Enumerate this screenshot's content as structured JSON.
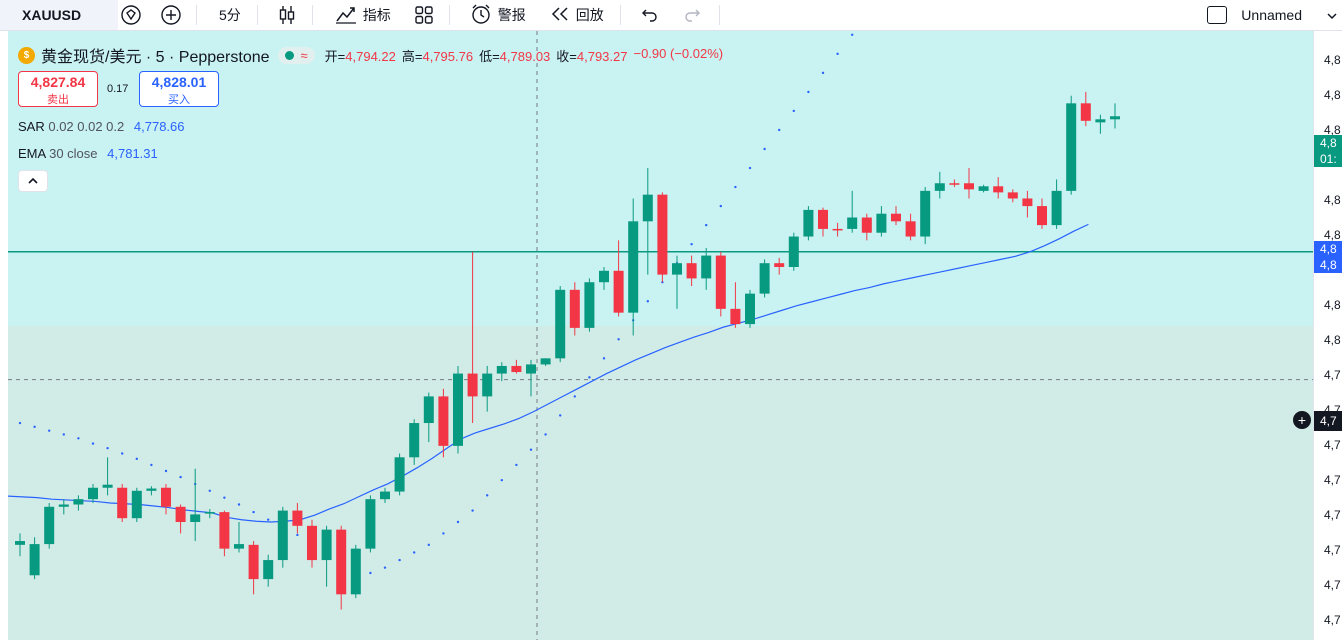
{
  "toolbar": {
    "symbol": "XAUUSD",
    "interval": "5分",
    "indicators_label": "指标",
    "alert_label": "警报",
    "replay_label": "回放",
    "layout_name": "Unnamed"
  },
  "legend": {
    "title": "黄金现货/美元 · 5 · Pepperstone",
    "open_label": "开=",
    "open": "4,794.22",
    "high_label": "高=",
    "high": "4,795.76",
    "low_label": "低=",
    "low": "4,789.03",
    "close_label": "收=",
    "close": "4,793.27",
    "change": "−0.90 (−0.02%)",
    "sell_price": "4,827.84",
    "sell_label": "卖出",
    "spread": "0.17",
    "buy_price": "4,828.01",
    "buy_label": "买入",
    "sar_name": "SAR",
    "sar_params": "0.02 0.02 0.2",
    "sar_value": "4,778.66",
    "ema_name": "EMA",
    "ema_params": "30 close",
    "ema_value": "4,781.31"
  },
  "price_axis": {
    "ticks": [
      "4,8",
      "4,8",
      "4,8",
      "4,8",
      "4,8",
      "4,8",
      "4,8",
      "4,7",
      "4,7",
      "4,7",
      "4,7",
      "4,7",
      "4,7",
      "4,7",
      "4,7"
    ],
    "last_price_tag_top": "4,8",
    "last_price_tag_bottom": "01:",
    "ema_tag_top": "4,8",
    "ema_tag_bottom": "4,8",
    "crosshair_tag": "4,7"
  },
  "colors": {
    "up": "#089981",
    "down": "#f23645",
    "ema": "#2962ff",
    "sar": "#2962ff",
    "level_line": "#089981",
    "zone_upper": "#c9f2f2",
    "zone_lower": "#d1ece7"
  },
  "icons": [
    "price-tag-icon",
    "plus-circle-icon",
    "candles-icon",
    "indicators-icon",
    "templates-icon",
    "alarm-icon",
    "replay-icon",
    "undo-icon",
    "redo-icon",
    "chevron-down-icon",
    "chevron-up-icon"
  ],
  "chart_data": {
    "type": "candlestick",
    "y_range": [
      4760,
      4840
    ],
    "level_line": 4811,
    "crosshair_price": 4794.2,
    "candles": [
      [
        4772.5,
        4774.0,
        4771.0,
        4773.0
      ],
      [
        4768.5,
        4773.5,
        4768.0,
        4772.6
      ],
      [
        4772.6,
        4778.0,
        4772.0,
        4777.5
      ],
      [
        4777.5,
        4778.5,
        4776.5,
        4777.8
      ],
      [
        4777.8,
        4779.0,
        4777.0,
        4778.5
      ],
      [
        4778.5,
        4780.5,
        4778.0,
        4780.0
      ],
      [
        4780.0,
        4784.0,
        4779.0,
        4780.4
      ],
      [
        4780.0,
        4780.5,
        4775.5,
        4776.0
      ],
      [
        4776.0,
        4780.0,
        4775.5,
        4779.6
      ],
      [
        4779.6,
        4780.2,
        4779.0,
        4779.9
      ],
      [
        4780.0,
        4780.5,
        4776.5,
        4777.5
      ],
      [
        4777.5,
        4777.8,
        4774.0,
        4775.5
      ],
      [
        4775.5,
        4782.5,
        4773.0,
        4776.5
      ],
      [
        4776.6,
        4777.2,
        4776.0,
        4776.8
      ],
      [
        4776.8,
        4777.0,
        4771.0,
        4772.0
      ],
      [
        4772.0,
        4775.5,
        4771.5,
        4772.6
      ],
      [
        4772.5,
        4773.0,
        4766.0,
        4768.0
      ],
      [
        4768.0,
        4771.2,
        4767.0,
        4770.5
      ],
      [
        4770.5,
        4777.5,
        4769.5,
        4777.0
      ],
      [
        4777.0,
        4778.0,
        4774.0,
        4775.0
      ],
      [
        4775.0,
        4775.8,
        4769.5,
        4770.5
      ],
      [
        4770.5,
        4775.0,
        4767.0,
        4774.5
      ],
      [
        4774.5,
        4775.0,
        4764.0,
        4766.0
      ],
      [
        4766.0,
        4772.5,
        4765.5,
        4772.0
      ],
      [
        4772.0,
        4779.0,
        4771.5,
        4778.5
      ],
      [
        4778.5,
        4780.0,
        4778.0,
        4779.5
      ],
      [
        4779.5,
        4784.5,
        4779.0,
        4784.0
      ],
      [
        4784.0,
        4789.0,
        4783.0,
        4788.5
      ],
      [
        4788.5,
        4792.5,
        4786.0,
        4792.0
      ],
      [
        4792.0,
        4793.0,
        4784.0,
        4785.5
      ],
      [
        4785.5,
        4796.0,
        4784.5,
        4795.0
      ],
      [
        4795.0,
        4811.0,
        4788.5,
        4792.0
      ],
      [
        4792.0,
        4796.0,
        4790.0,
        4795.0
      ],
      [
        4795.0,
        4796.5,
        4794.0,
        4796.0
      ],
      [
        4796.0,
        4796.8,
        4795.0,
        4795.2
      ],
      [
        4795.0,
        4796.8,
        4792.0,
        4796.2
      ],
      [
        4796.2,
        4797.0,
        4796.0,
        4797.0
      ],
      [
        4797.0,
        4806.5,
        4796.5,
        4806.0
      ],
      [
        4806.0,
        4807.0,
        4800.0,
        4801.0
      ],
      [
        4801.0,
        4807.5,
        4800.5,
        4807.0
      ],
      [
        4807.0,
        4809.0,
        4806.0,
        4808.5
      ],
      [
        4808.5,
        4812.5,
        4802.5,
        4803.0
      ],
      [
        4803.0,
        4818.0,
        4800.0,
        4815.0
      ],
      [
        4815.0,
        4822.0,
        4808.0,
        4818.5
      ],
      [
        4818.5,
        4818.8,
        4807.0,
        4808.0
      ],
      [
        4808.0,
        4810.5,
        4803.5,
        4809.5
      ],
      [
        4809.5,
        4810.5,
        4806.5,
        4807.5
      ],
      [
        4807.5,
        4811.5,
        4806.0,
        4810.5
      ],
      [
        4810.5,
        4811.0,
        4802.5,
        4803.5
      ],
      [
        4803.5,
        4807.0,
        4801.0,
        4801.5
      ],
      [
        4801.5,
        4806.0,
        4801.0,
        4805.5
      ],
      [
        4805.5,
        4810.0,
        4805.0,
        4809.5
      ],
      [
        4809.5,
        4810.2,
        4808.0,
        4809.0
      ],
      [
        4809.0,
        4813.5,
        4808.5,
        4813.0
      ],
      [
        4813.0,
        4817.0,
        4812.5,
        4816.5
      ],
      [
        4816.5,
        4816.8,
        4813.0,
        4814.0
      ],
      [
        4814.0,
        4814.8,
        4813.0,
        4813.8
      ],
      [
        4814.0,
        4819.0,
        4813.5,
        4815.5
      ],
      [
        4815.5,
        4816.0,
        4812.5,
        4813.5
      ],
      [
        4813.5,
        4817.0,
        4813.0,
        4816.0
      ],
      [
        4816.0,
        4817.0,
        4814.5,
        4815.0
      ],
      [
        4815.0,
        4816.0,
        4812.5,
        4813.0
      ],
      [
        4813.0,
        4819.5,
        4812.0,
        4819.0
      ],
      [
        4819.0,
        4821.5,
        4818.0,
        4820.0
      ],
      [
        4820.0,
        4820.5,
        4819.5,
        4819.9
      ],
      [
        4820.0,
        4822.0,
        4818.0,
        4819.2
      ],
      [
        4819.0,
        4819.8,
        4818.8,
        4819.6
      ],
      [
        4819.6,
        4820.8,
        4818.0,
        4818.8
      ],
      [
        4818.8,
        4819.2,
        4817.5,
        4818.0
      ],
      [
        4818.0,
        4819.0,
        4815.5,
        4817.0
      ],
      [
        4817.0,
        4818.0,
        4814.0,
        4814.5
      ],
      [
        4814.5,
        4820.5,
        4814.0,
        4819.0
      ],
      [
        4819.0,
        4831.5,
        4818.5,
        4830.5
      ],
      [
        4830.5,
        4832.0,
        4827.5,
        4828.2
      ],
      [
        4828.0,
        4829.0,
        4826.5,
        4828.4
      ],
      [
        4828.4,
        4830.5,
        4827.2,
        4828.8
      ]
    ],
    "ema": [
      4778.9,
      4778.8,
      4778.7,
      4778.5,
      4778.4,
      4778.3,
      4778.2,
      4778.0,
      4777.9,
      4777.8,
      4777.6,
      4777.4,
      4777.1,
      4776.9,
      4776.7,
      4776.1,
      4775.8,
      4775.6,
      4775.5,
      4775.6,
      4775.8,
      4776.4,
      4777.2,
      4777.9,
      4778.8,
      4779.7,
      4780.5,
      4781.5,
      4782.6,
      4783.8,
      4785.1,
      4786.4,
      4787.2,
      4787.8,
      4788.4,
      4789.1,
      4790.0,
      4791.0,
      4792.0,
      4793.0,
      4794.0,
      4795.0,
      4795.9,
      4796.8,
      4797.6,
      4798.4,
      4799.1,
      4799.8,
      4800.4,
      4801.1,
      4801.6,
      4802.1,
      4802.7,
      4803.3,
      4803.9,
      4804.4,
      4804.9,
      4805.4,
      4805.9,
      4806.3,
      4806.8,
      4807.2,
      4807.6,
      4808.0,
      4808.4,
      4808.8,
      4809.2,
      4809.6,
      4810.0,
      4810.4,
      4811.0,
      4811.8,
      4812.7,
      4813.7,
      4814.6
    ],
    "sar": [
      4788.5,
      4788.0,
      4787.5,
      4787.0,
      4786.5,
      4785.8,
      4785.2,
      4784.5,
      4783.8,
      4783.0,
      4782.2,
      4781.4,
      4780.5,
      4779.6,
      4778.7,
      4777.8,
      4776.8,
      4775.8,
      4774.8,
      4773.8,
      4772.8,
      4771.8,
      4770.8,
      4769.8,
      4768.8,
      4769.5,
      4770.5,
      4771.5,
      4772.5,
      4774.0,
      4775.5,
      4777.0,
      4779.0,
      4781.0,
      4783.0,
      4785.0,
      4787.0,
      4789.5,
      4792.0,
      4794.5,
      4797.0,
      4799.5,
      4802.0,
      4804.5,
      4807.0,
      4809.5,
      4812.0,
      4814.5,
      4817.0,
      4819.5,
      4822.0,
      4824.5,
      4827.0,
      4829.5,
      4832.0,
      4834.5,
      4837.0,
      4839.5,
      4842.0,
      4844.5
    ]
  }
}
